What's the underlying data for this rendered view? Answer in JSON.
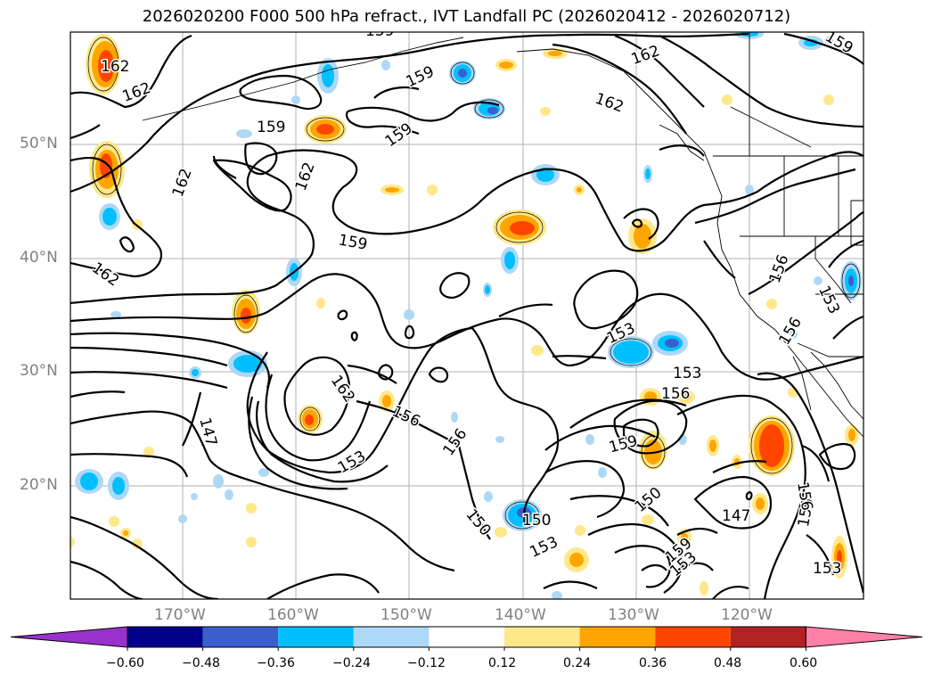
{
  "title": "2026020200 F000 500 hPa refract., IVT Landfall PC (2026020412 - 2026020712)",
  "lat_labels": [
    "50°N",
    "40°N",
    "30°N",
    "20°N"
  ],
  "lon_labels": [
    "170°W",
    "160°W",
    "150°W",
    "140°W",
    "130°W",
    "120°W"
  ],
  "colorbar": {
    "ticks": [
      "−0.60",
      "−0.48",
      "−0.36",
      "−0.24",
      "−0.12",
      "0.12",
      "0.24",
      "0.36",
      "0.48",
      "0.60"
    ],
    "colors": {
      "under": "#9932CC",
      "levels": [
        "#00008B",
        "#3A5FCD",
        "#00BFFF",
        "#ADD8F6",
        "#FFFFFF",
        "#FFE88A",
        "#FFA500",
        "#FF4500",
        "#B22222"
      ],
      "over": "#FF80A8"
    }
  },
  "contour_labels": [
    "162",
    "162",
    "159",
    "162",
    "162",
    "159",
    "159",
    "159",
    "162",
    "162",
    "159",
    "159",
    "156",
    "153",
    "156",
    "153",
    "156",
    "153",
    "159",
    "150",
    "150",
    "150",
    "153",
    "147",
    "147",
    "156",
    "153",
    "162",
    "156",
    "156",
    "153",
    "156",
    "153",
    "162",
    "159"
  ]
}
